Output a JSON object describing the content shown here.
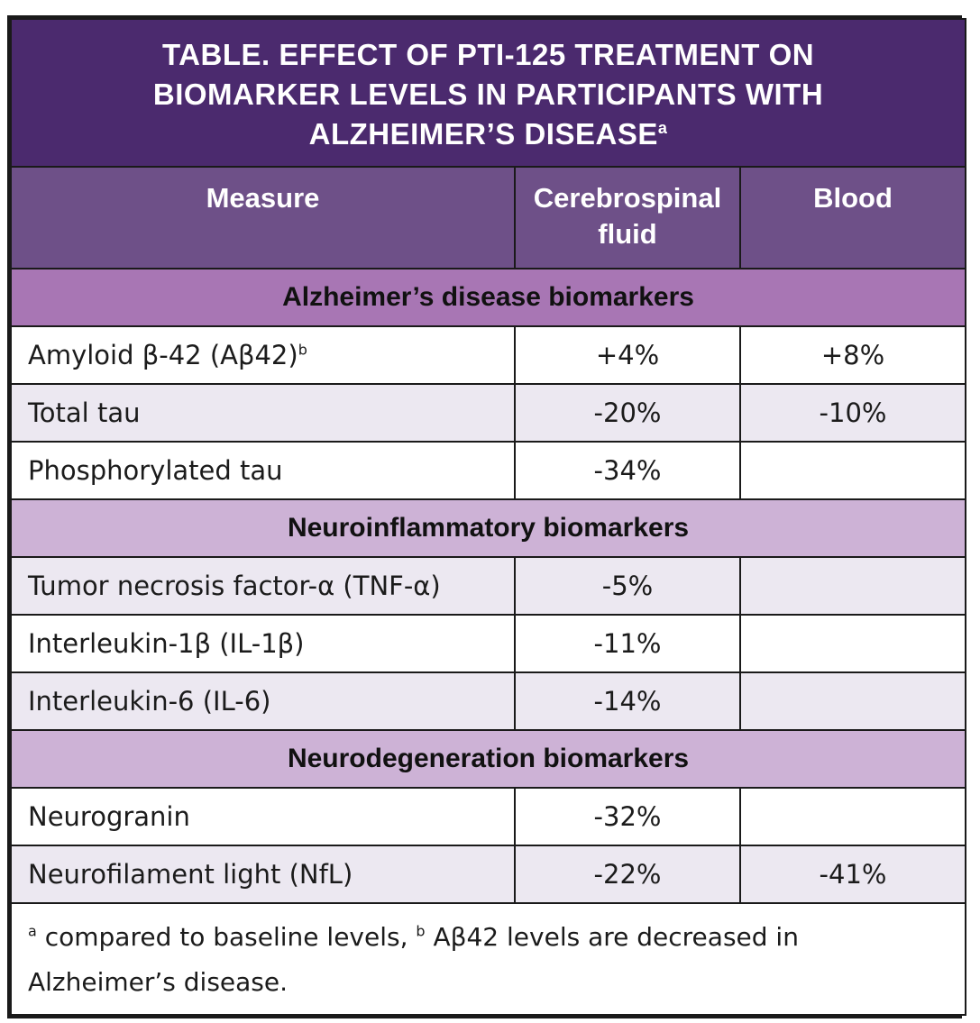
{
  "title": {
    "line1": "TABLE. EFFECT OF PTI-125 TREATMENT ON",
    "line2": "BIOMARKER LEVELS IN PARTICIPANTS WITH",
    "line3": "ALZHEIMER’S DISEASE",
    "superscript": "a"
  },
  "columns": {
    "measure": "Measure",
    "csf_line1": "Cerebrospinal",
    "csf_line2": "fluid",
    "blood": "Blood"
  },
  "sections": [
    {
      "label": "Alzheimer’s disease biomarkers",
      "rows": [
        {
          "measure": "Amyloid β-42 (Aβ42)",
          "sup": "b",
          "csf": "+4%",
          "blood": "+8%"
        },
        {
          "measure": "Total tau",
          "sup": "",
          "csf": "-20%",
          "blood": "-10%"
        },
        {
          "measure": "Phosphorylated tau",
          "sup": "",
          "csf": "-34%",
          "blood": ""
        }
      ]
    },
    {
      "label": "Neuroinflammatory biomarkers",
      "rows": [
        {
          "measure": "Tumor necrosis factor-α (TNF-α)",
          "sup": "",
          "csf": "-5%",
          "blood": ""
        },
        {
          "measure": "Interleukin-1β (IL-1β)",
          "sup": "",
          "csf": "-11%",
          "blood": ""
        },
        {
          "measure": "Interleukin-6 (IL-6)",
          "sup": "",
          "csf": "-14%",
          "blood": ""
        }
      ]
    },
    {
      "label": "Neurodegeneration biomarkers",
      "rows": [
        {
          "measure": "Neurogranin",
          "sup": "",
          "csf": "-32%",
          "blood": ""
        },
        {
          "measure": "Neurofilament light (NfL)",
          "sup": "",
          "csf": "-22%",
          "blood": "-41%"
        }
      ]
    }
  ],
  "footnote": {
    "sup_a": "a",
    "text_a": " compared to baseline levels, ",
    "sup_b": "b",
    "text_b": " Aβ42 levels are decreased in Alzheimer’s disease."
  },
  "colors": {
    "title_bg": "#4b2a6e",
    "column_header_bg": "#6e5088",
    "section_ad_bg": "#a876b4",
    "section_other_bg": "#cdb2d6",
    "alt_row_bg": "#ece8f1",
    "border": "#1a1a1a"
  }
}
